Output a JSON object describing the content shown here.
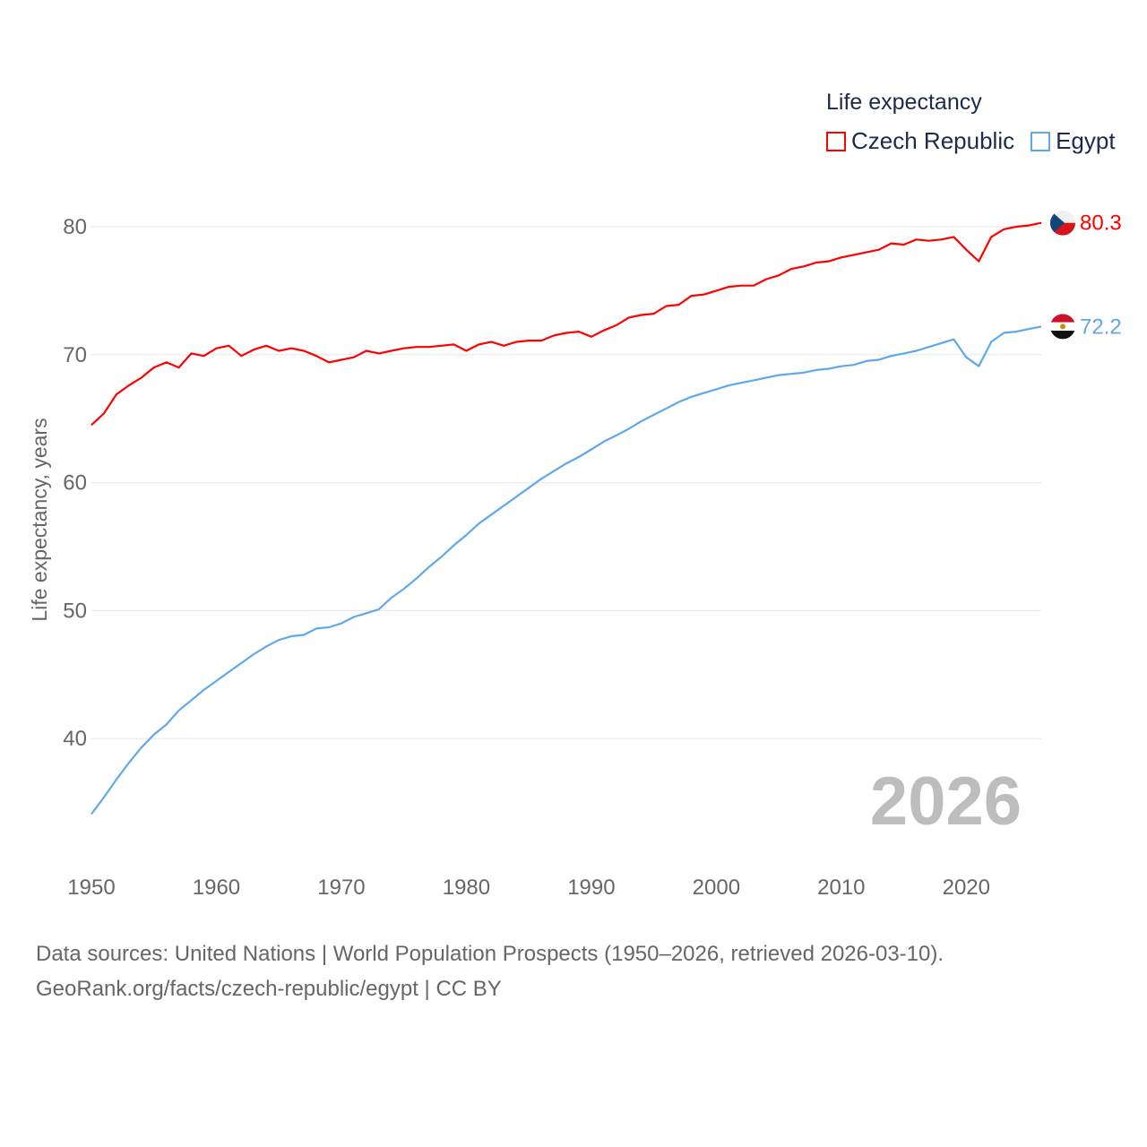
{
  "chart_data": {
    "type": "line",
    "title": "Life expectancy",
    "xlabel": "",
    "ylabel": "Life expectancy, years",
    "xlim": [
      1950,
      2026
    ],
    "ylim": [
      33,
      81
    ],
    "x_ticks": [
      "1950",
      "1960",
      "1970",
      "1980",
      "1990",
      "2000",
      "2010",
      "2020"
    ],
    "y_ticks": [
      "40",
      "50",
      "60",
      "70",
      "80"
    ],
    "grid": true,
    "legend_position": "top-right",
    "year_label": "2026",
    "x": [
      1950,
      1951,
      1952,
      1953,
      1954,
      1955,
      1956,
      1957,
      1958,
      1959,
      1960,
      1961,
      1962,
      1963,
      1964,
      1965,
      1966,
      1967,
      1968,
      1969,
      1970,
      1971,
      1972,
      1973,
      1974,
      1975,
      1976,
      1977,
      1978,
      1979,
      1980,
      1981,
      1982,
      1983,
      1984,
      1985,
      1986,
      1987,
      1988,
      1989,
      1990,
      1991,
      1992,
      1993,
      1994,
      1995,
      1996,
      1997,
      1998,
      1999,
      2000,
      2001,
      2002,
      2003,
      2004,
      2005,
      2006,
      2007,
      2008,
      2009,
      2010,
      2011,
      2012,
      2013,
      2014,
      2015,
      2016,
      2017,
      2018,
      2019,
      2020,
      2021,
      2022,
      2023,
      2024,
      2025,
      2026
    ],
    "series": [
      {
        "name": "Czech Republic",
        "color": "#ff0000",
        "end_label": "80.3",
        "values": [
          64.5,
          65.4,
          66.9,
          67.6,
          68.2,
          69.0,
          69.4,
          69.0,
          70.1,
          69.9,
          70.5,
          70.7,
          69.9,
          70.4,
          70.7,
          70.3,
          70.5,
          70.3,
          69.9,
          69.4,
          69.6,
          69.8,
          70.3,
          70.1,
          70.3,
          70.5,
          70.6,
          70.6,
          70.7,
          70.8,
          70.3,
          70.8,
          71.0,
          70.7,
          71.0,
          71.1,
          71.1,
          71.5,
          71.7,
          71.8,
          71.4,
          71.9,
          72.3,
          72.9,
          73.1,
          73.2,
          73.8,
          73.9,
          74.6,
          74.7,
          75.0,
          75.3,
          75.4,
          75.4,
          75.9,
          76.2,
          76.7,
          76.9,
          77.2,
          77.3,
          77.6,
          77.8,
          78.0,
          78.2,
          78.7,
          78.6,
          79.0,
          78.9,
          79.0,
          79.2,
          78.2,
          77.3,
          79.2,
          79.8,
          80.0,
          80.1,
          80.3
        ]
      },
      {
        "name": "Egypt",
        "color": "#5fa8ee",
        "end_label": "72.2",
        "values": [
          34.1,
          35.4,
          36.8,
          38.1,
          39.3,
          40.3,
          41.1,
          42.2,
          43.0,
          43.8,
          44.5,
          45.2,
          45.9,
          46.6,
          47.2,
          47.7,
          48.0,
          48.1,
          48.6,
          48.7,
          49.0,
          49.5,
          49.8,
          50.1,
          51.0,
          51.7,
          52.5,
          53.4,
          54.2,
          55.1,
          55.9,
          56.8,
          57.5,
          58.2,
          58.9,
          59.6,
          60.3,
          60.9,
          61.5,
          62.0,
          62.6,
          63.2,
          63.7,
          64.2,
          64.8,
          65.3,
          65.8,
          66.3,
          66.7,
          67.0,
          67.3,
          67.6,
          67.8,
          68.0,
          68.2,
          68.4,
          68.5,
          68.6,
          68.8,
          68.9,
          69.1,
          69.2,
          69.5,
          69.6,
          69.9,
          70.1,
          70.3,
          70.6,
          70.9,
          71.2,
          69.8,
          69.1,
          71.0,
          71.7,
          71.8,
          72.0,
          72.2
        ]
      }
    ]
  },
  "source": {
    "line1": "Data sources: United Nations | World Population Prospects (1950–2026, retrieved 2026-03-10).",
    "line2": "GeoRank.org/facts/czech-republic/egypt | CC BY"
  }
}
